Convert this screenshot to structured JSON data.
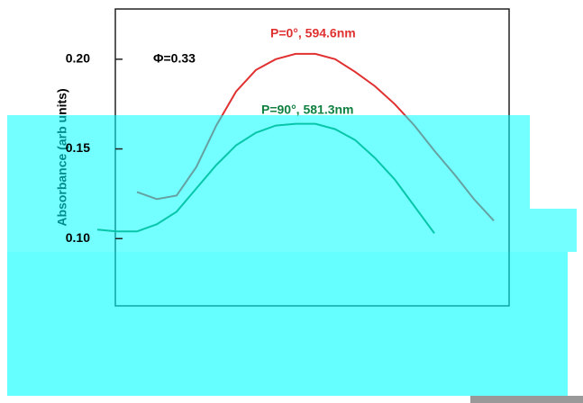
{
  "chart_data": {
    "type": "line",
    "y_label": "Absorbance (arb units)",
    "annotations": [
      "Φ=0.33",
      "P=0°, 594.6nm",
      "P=90°, 581.3nm"
    ],
    "categories": [
      null,
      null,
      null,
      null,
      null,
      null,
      null,
      null,
      null,
      null,
      null,
      null,
      null,
      null,
      null,
      null,
      null,
      null,
      null,
      null,
      null
    ],
    "series": [
      {
        "name": "P=0°",
        "color": "#e03030",
        "values": [
          null,
          null,
          0.126,
          0.122,
          0.124,
          0.14,
          0.163,
          0.182,
          0.194,
          0.2,
          0.203,
          0.203,
          0.2,
          0.193,
          0.185,
          0.175,
          0.163,
          0.149,
          0.136,
          0.122,
          0.11
        ]
      },
      {
        "name": "P=90°",
        "color": "#108040",
        "values": [
          0.105,
          0.104,
          0.104,
          0.108,
          0.115,
          0.128,
          0.141,
          0.152,
          0.159,
          0.163,
          0.164,
          0.164,
          0.161,
          0.155,
          0.145,
          0.133,
          0.118,
          0.103,
          null,
          null,
          null
        ]
      }
    ],
    "ylim": [
      0.06,
      0.228
    ],
    "yticks": [
      {
        "value": 0.1,
        "label": "0.10"
      },
      0.15,
      {
        "value": 0.2,
        "label": "0.20"
      }
    ]
  }
}
